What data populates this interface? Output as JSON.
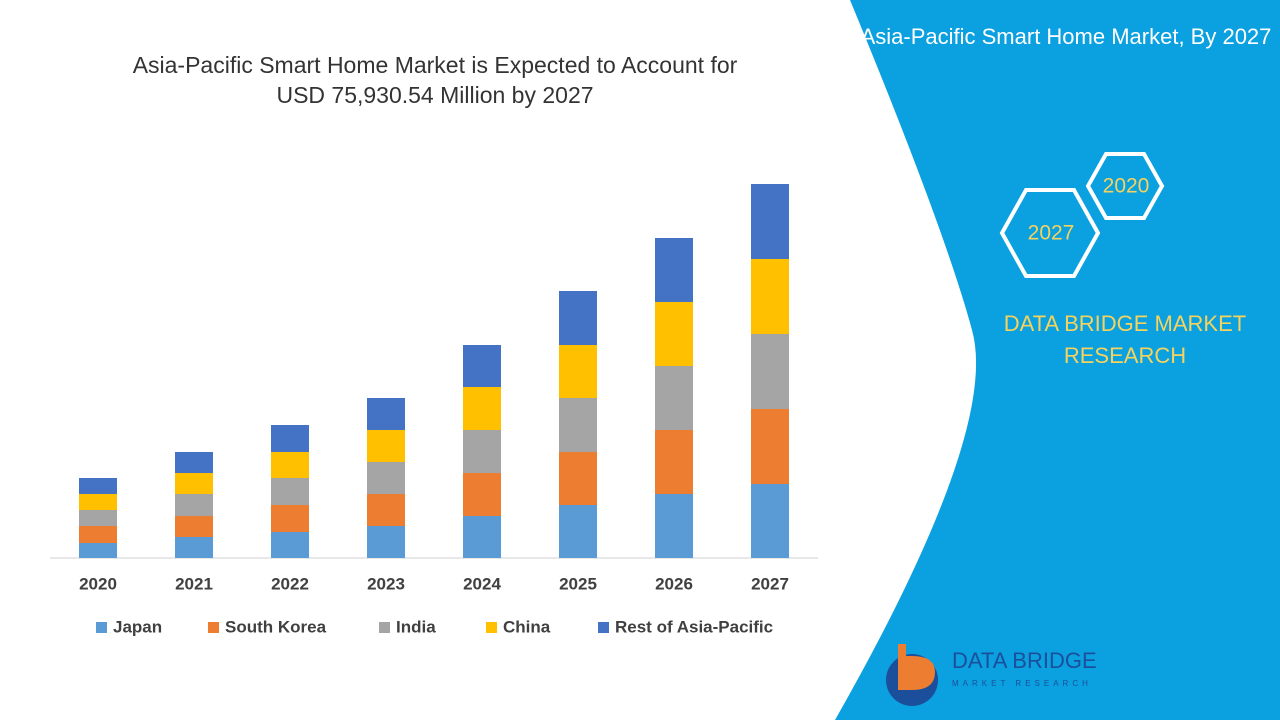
{
  "chart_data": {
    "type": "bar",
    "stacked": true,
    "title": "Asia-Pacific Smart Home Market is Expected to Account for USD 75,930.54 Million by 2027",
    "categories": [
      "2020",
      "2021",
      "2022",
      "2023",
      "2024",
      "2025",
      "2026",
      "2027"
    ],
    "series": [
      {
        "name": "Japan",
        "color": "#5b9bd5",
        "values": [
          15,
          21,
          26,
          32,
          42,
          53,
          64,
          74
        ]
      },
      {
        "name": "South Korea",
        "color": "#ed7d31",
        "values": [
          17,
          21,
          27,
          32,
          43,
          53,
          64,
          75
        ]
      },
      {
        "name": "India",
        "color": "#a5a5a5",
        "values": [
          16,
          22,
          27,
          32,
          43,
          54,
          64,
          75
        ]
      },
      {
        "name": "China",
        "color": "#ffc000",
        "values": [
          16,
          21,
          26,
          32,
          43,
          53,
          64,
          75
        ]
      },
      {
        "name": "Rest of Asia-Pacific",
        "color": "#4472c4",
        "values": [
          16,
          21,
          27,
          32,
          42,
          54,
          64,
          75
        ]
      }
    ],
    "legend": "bottom"
  },
  "panel": {
    "title": "Asia-Pacific Smart Home Market, By 2027",
    "hex_labels": [
      "2020",
      "2027"
    ],
    "brand": "DATA BRIDGE MARKET RESEARCH"
  },
  "logo": {
    "name": "DATA BRIDGE",
    "tagline": "MARKET RESEARCH"
  }
}
